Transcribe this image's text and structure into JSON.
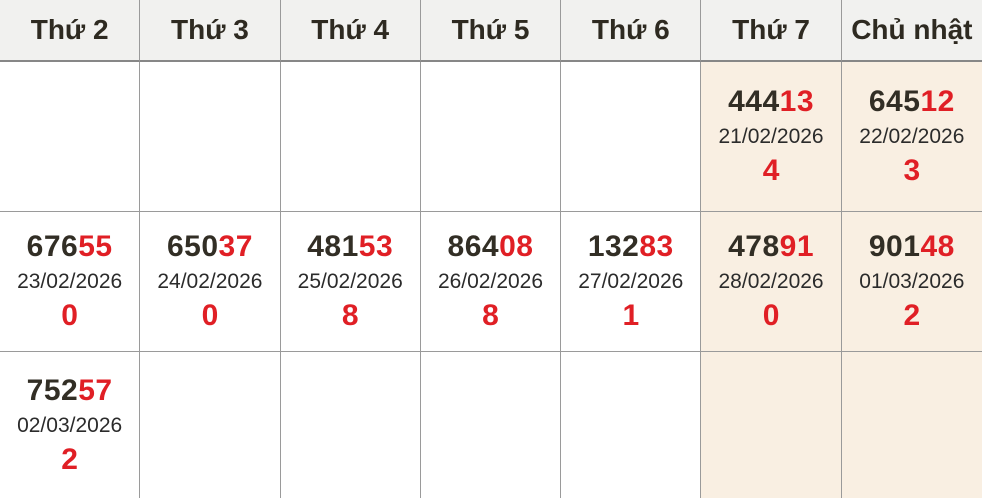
{
  "colors": {
    "accent_red": "#e01f25",
    "number_dark": "#322e25",
    "header_bg": "#f1f1ef",
    "weekend_bg": "#f9efe2",
    "grid_border": "#9a9a9a"
  },
  "header": {
    "days": [
      "Thứ 2",
      "Thứ 3",
      "Thứ 4",
      "Thứ 5",
      "Thứ 6",
      "Thứ 7",
      "Chủ nhật"
    ]
  },
  "weeks": [
    {
      "cells": [
        {},
        {},
        {},
        {},
        {},
        {
          "num_main": "444",
          "num_tail": "13",
          "date": "21/02/2026",
          "count": "4"
        },
        {
          "num_main": "645",
          "num_tail": "12",
          "date": "22/02/2026",
          "count": "3"
        }
      ]
    },
    {
      "cells": [
        {
          "num_main": "676",
          "num_tail": "55",
          "date": "23/02/2026",
          "count": "0"
        },
        {
          "num_main": "650",
          "num_tail": "37",
          "date": "24/02/2026",
          "count": "0"
        },
        {
          "num_main": "481",
          "num_tail": "53",
          "date": "25/02/2026",
          "count": "8"
        },
        {
          "num_main": "864",
          "num_tail": "08",
          "date": "26/02/2026",
          "count": "8"
        },
        {
          "num_main": "132",
          "num_tail": "83",
          "date": "27/02/2026",
          "count": "1"
        },
        {
          "num_main": "478",
          "num_tail": "91",
          "date": "28/02/2026",
          "count": "0"
        },
        {
          "num_main": "901",
          "num_tail": "48",
          "date": "01/03/2026",
          "count": "2"
        }
      ]
    },
    {
      "cells": [
        {
          "num_main": "752",
          "num_tail": "57",
          "date": "02/03/2026",
          "count": "2"
        },
        {},
        {},
        {},
        {},
        {},
        {}
      ]
    }
  ]
}
